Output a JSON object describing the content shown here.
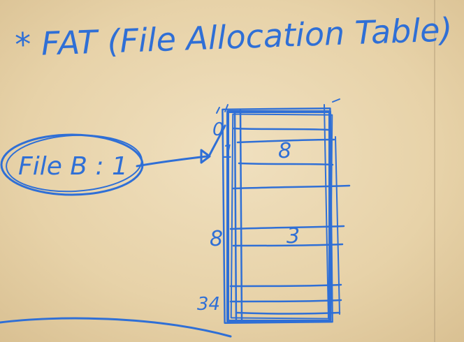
{
  "diagram": {
    "title": "* FAT (File Allocation Table)",
    "directory_entry": "File B : 1",
    "fat_entries": [
      {
        "index_label": "0",
        "value_label": ""
      },
      {
        "index_label": "1",
        "value_label": "8"
      },
      {
        "index_label": "8",
        "value_label": "3"
      },
      {
        "index_label": "34",
        "value_label": ""
      }
    ],
    "colors": {
      "ink": "#2f6fd6",
      "paper": "#e9d6b0"
    }
  }
}
